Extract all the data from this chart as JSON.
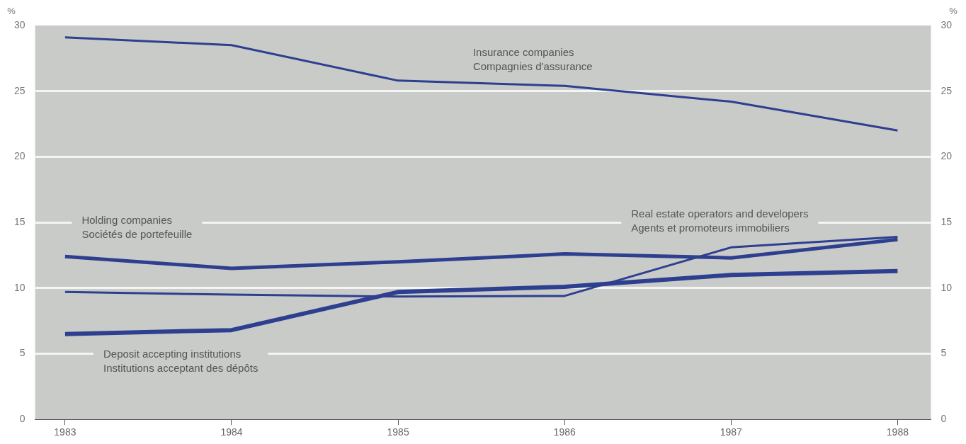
{
  "chart_data": {
    "type": "line",
    "ylabel": "%",
    "y2label": "%",
    "x": [
      1983,
      1984,
      1985,
      1986,
      1987,
      1988
    ],
    "xlim": [
      1982.82,
      1988.2
    ],
    "xticks": [
      1983,
      1984,
      1985,
      1986,
      1987,
      1988
    ],
    "ylim": [
      0,
      30
    ],
    "yticks": [
      0,
      5,
      10,
      15,
      20,
      25,
      30
    ],
    "y2lim": [
      0,
      30
    ],
    "y2ticks": [
      0,
      5,
      10,
      15,
      20,
      25,
      30
    ],
    "grid": "y",
    "marker": "none",
    "line_style": "solid",
    "legend": false,
    "series": [
      {
        "name": "Insurance companies\nCompagnies d'assurance",
        "color": "#2e3f8f",
        "values": [
          29.1,
          28.5,
          25.8,
          25.4,
          24.2,
          22.0
        ]
      },
      {
        "name": "Holding companies\nSociétés de portefeuille",
        "color": "#2e3f8f",
        "values": [
          12.4,
          11.5,
          12.0,
          12.6,
          12.3,
          13.7
        ]
      },
      {
        "name": "Real estate operators and developers\nAgents et promoteurs immobiliers",
        "color": "#2e3f8f",
        "values": [
          9.7,
          9.5,
          9.35,
          9.4,
          13.1,
          13.9
        ]
      },
      {
        "name": "Deposit accepting institutions\nInstitutions acceptant des dépôts",
        "color": "#2e3f8f",
        "values": [
          6.5,
          6.8,
          9.7,
          10.1,
          11.0,
          11.3
        ]
      }
    ]
  }
}
